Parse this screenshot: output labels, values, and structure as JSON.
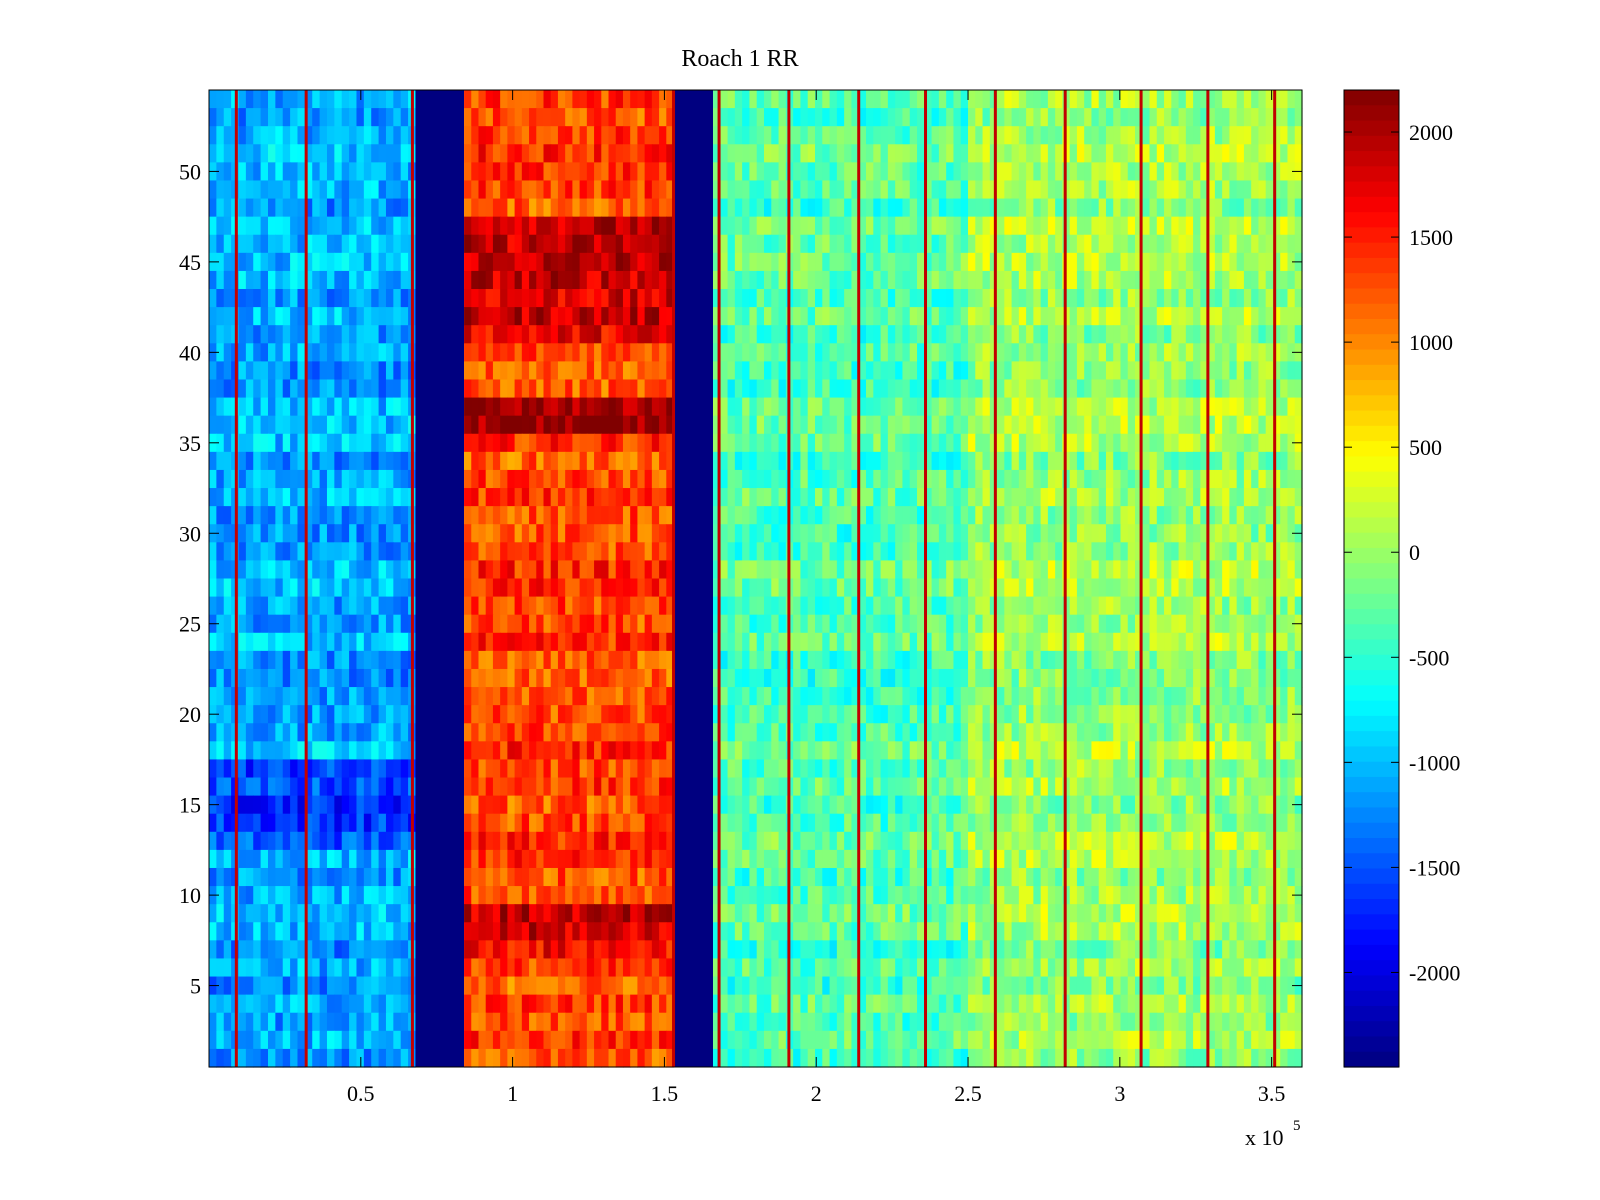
{
  "chart_data": {
    "type": "heatmap",
    "title": "Roach 1 RR",
    "xlabel": "",
    "ylabel": "",
    "x_exponent_base": "x 10",
    "x_exponent_power": "5",
    "xlim": [
      0,
      3.6
    ],
    "ylim": [
      0.5,
      54.5
    ],
    "x_ticks": [
      0.5,
      1,
      1.5,
      2,
      2.5,
      3,
      3.5
    ],
    "x_tick_labels": [
      "0.5",
      "1",
      "1.5",
      "2",
      "2.5",
      "3",
      "3.5"
    ],
    "y_ticks": [
      5,
      10,
      15,
      20,
      25,
      30,
      35,
      40,
      45,
      50
    ],
    "y_tick_labels": [
      "5",
      "10",
      "15",
      "20",
      "25",
      "30",
      "35",
      "40",
      "45",
      "50"
    ],
    "rows": 54,
    "colorbar": {
      "colormap": "jet",
      "clim": [
        -2450,
        2200
      ],
      "ticks": [
        2000,
        1500,
        1000,
        500,
        0,
        -500,
        -1000,
        -1500,
        -2000
      ],
      "tick_labels": [
        "2000",
        "1500",
        "1000",
        "500",
        "0",
        "-500",
        "-1000",
        "-1500",
        "-2000"
      ]
    },
    "regions": [
      {
        "x_start": 0.0,
        "x_end": 0.68,
        "mean_value": -1100,
        "description": "light blue band"
      },
      {
        "x_start": 0.68,
        "x_end": 0.84,
        "mean_value": -2450,
        "description": "dark blue gap"
      },
      {
        "x_start": 0.84,
        "x_end": 1.53,
        "mean_value": 1300,
        "description": "red band"
      },
      {
        "x_start": 1.53,
        "x_end": 1.66,
        "mean_value": -2450,
        "description": "dark blue gap"
      },
      {
        "x_start": 1.66,
        "x_end": 2.5,
        "mean_value": -350,
        "description": "cyan-green band"
      },
      {
        "x_start": 2.5,
        "x_end": 3.6,
        "mean_value": 0,
        "description": "green-yellow band"
      }
    ],
    "vertical_lines_x": [
      0.09,
      0.32,
      0.67,
      1.53,
      1.68,
      1.91,
      2.14,
      2.36,
      2.59,
      2.82,
      3.07,
      3.29,
      3.51
    ],
    "row_effects": [
      {
        "rows": [
          41,
          47
        ],
        "region": "red band",
        "delta": 500
      },
      {
        "rows": [
          36,
          37
        ],
        "region": "red band",
        "delta": 700
      },
      {
        "rows": [
          7,
          9
        ],
        "region": "red band",
        "delta": 450
      },
      {
        "rows": [
          13,
          17
        ],
        "region": "light blue band",
        "delta": -500
      }
    ]
  }
}
